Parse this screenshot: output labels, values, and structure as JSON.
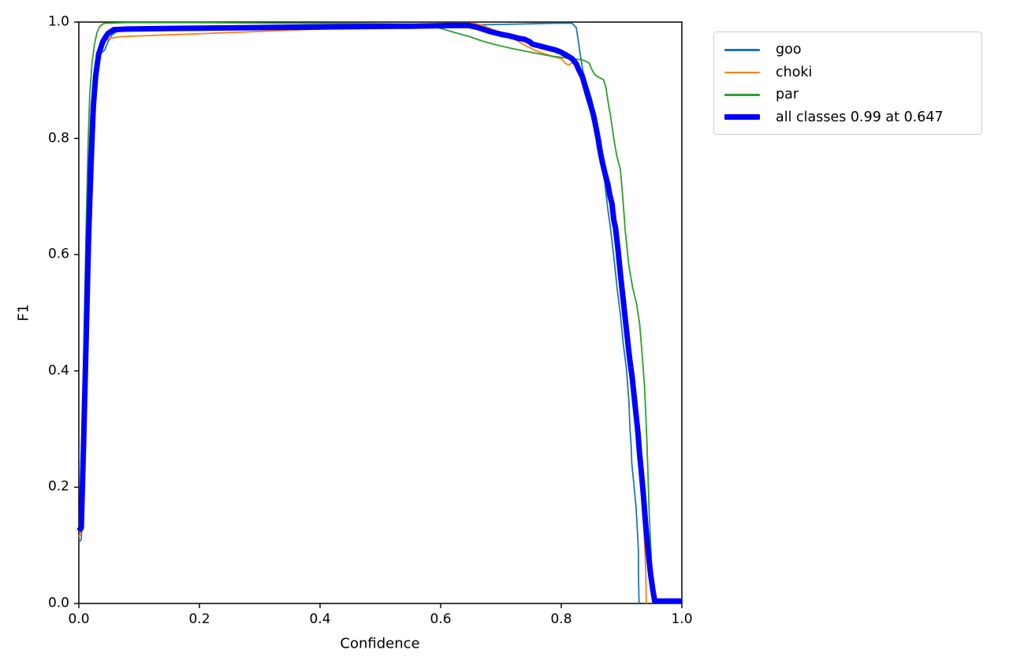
{
  "figure": {
    "background": "#ffffff",
    "plot_border_color": "#000000"
  },
  "chart_data": {
    "type": "line",
    "title": "",
    "xlabel": "Confidence",
    "ylabel": "F1",
    "xlim": [
      0.0,
      1.0
    ],
    "ylim": [
      0.0,
      1.0
    ],
    "x_ticks": [
      0.0,
      0.2,
      0.4,
      0.6,
      0.8,
      1.0
    ],
    "y_ticks": [
      0.0,
      0.2,
      0.4,
      0.6,
      0.8,
      1.0
    ],
    "x_tick_labels": [
      "0.0",
      "0.2",
      "0.4",
      "0.6",
      "0.8",
      "1.0"
    ],
    "y_tick_labels": [
      "0.0",
      "0.2",
      "0.4",
      "0.6",
      "0.8",
      "1.0"
    ],
    "grid": false,
    "legend_position": "outside-top-right",
    "best_f1": "0.99",
    "best_confidence": "0.647",
    "series": [
      {
        "name": "goo",
        "legend_label": "goo",
        "color": "#1f77b4",
        "line_width": 1.8,
        "points": [
          [
            0.0,
            0.105
          ],
          [
            0.004,
            0.11
          ],
          [
            0.007,
            0.2
          ],
          [
            0.011,
            0.34
          ],
          [
            0.014,
            0.47
          ],
          [
            0.018,
            0.6
          ],
          [
            0.023,
            0.73
          ],
          [
            0.027,
            0.85
          ],
          [
            0.03,
            0.92
          ],
          [
            0.033,
            0.948
          ],
          [
            0.036,
            0.957
          ],
          [
            0.039,
            0.948
          ],
          [
            0.043,
            0.952
          ],
          [
            0.048,
            0.965
          ],
          [
            0.055,
            0.978
          ],
          [
            0.065,
            0.985
          ],
          [
            0.1,
            0.987
          ],
          [
            0.2,
            0.989
          ],
          [
            0.3,
            0.99
          ],
          [
            0.4,
            0.991
          ],
          [
            0.5,
            0.992
          ],
          [
            0.6,
            0.994
          ],
          [
            0.65,
            0.995
          ],
          [
            0.7,
            0.996
          ],
          [
            0.75,
            0.997
          ],
          [
            0.79,
            0.998
          ],
          [
            0.818,
            0.998
          ],
          [
            0.825,
            0.99
          ],
          [
            0.828,
            0.97
          ],
          [
            0.831,
            0.948
          ],
          [
            0.836,
            0.915
          ],
          [
            0.842,
            0.895
          ],
          [
            0.85,
            0.868
          ],
          [
            0.856,
            0.84
          ],
          [
            0.86,
            0.805
          ],
          [
            0.864,
            0.778
          ],
          [
            0.868,
            0.748
          ],
          [
            0.872,
            0.726
          ],
          [
            0.877,
            0.68
          ],
          [
            0.881,
            0.65
          ],
          [
            0.884,
            0.625
          ],
          [
            0.888,
            0.588
          ],
          [
            0.893,
            0.54
          ],
          [
            0.898,
            0.497
          ],
          [
            0.903,
            0.445
          ],
          [
            0.908,
            0.405
          ],
          [
            0.912,
            0.35
          ],
          [
            0.914,
            0.3
          ],
          [
            0.916,
            0.27
          ],
          [
            0.917,
            0.24
          ],
          [
            0.92,
            0.21
          ],
          [
            0.924,
            0.165
          ],
          [
            0.926,
            0.13
          ],
          [
            0.928,
            0.09
          ],
          [
            0.928,
            0.05
          ],
          [
            0.929,
            0.0
          ]
        ]
      },
      {
        "name": "choki",
        "legend_label": "choki",
        "color": "#ff7f0e",
        "line_width": 1.8,
        "points": [
          [
            0.0,
            0.115
          ],
          [
            0.003,
            0.12
          ],
          [
            0.007,
            0.25
          ],
          [
            0.01,
            0.4
          ],
          [
            0.014,
            0.58
          ],
          [
            0.018,
            0.72
          ],
          [
            0.022,
            0.83
          ],
          [
            0.026,
            0.9
          ],
          [
            0.03,
            0.938
          ],
          [
            0.036,
            0.955
          ],
          [
            0.042,
            0.965
          ],
          [
            0.05,
            0.972
          ],
          [
            0.07,
            0.975
          ],
          [
            0.12,
            0.977
          ],
          [
            0.2,
            0.98
          ],
          [
            0.3,
            0.984
          ],
          [
            0.4,
            0.988
          ],
          [
            0.5,
            0.992
          ],
          [
            0.57,
            0.995
          ],
          [
            0.62,
            0.997
          ],
          [
            0.655,
            0.998
          ],
          [
            0.668,
            0.995
          ],
          [
            0.68,
            0.99
          ],
          [
            0.695,
            0.984
          ],
          [
            0.71,
            0.977
          ],
          [
            0.725,
            0.969
          ],
          [
            0.74,
            0.96
          ],
          [
            0.755,
            0.952
          ],
          [
            0.77,
            0.946
          ],
          [
            0.785,
            0.941
          ],
          [
            0.8,
            0.937
          ],
          [
            0.806,
            0.93
          ],
          [
            0.812,
            0.926
          ],
          [
            0.818,
            0.93
          ],
          [
            0.824,
            0.928
          ],
          [
            0.828,
            0.92
          ],
          [
            0.832,
            0.905
          ],
          [
            0.836,
            0.892
          ],
          [
            0.84,
            0.88
          ],
          [
            0.846,
            0.862
          ],
          [
            0.852,
            0.838
          ],
          [
            0.857,
            0.82
          ],
          [
            0.862,
            0.792
          ],
          [
            0.866,
            0.77
          ],
          [
            0.87,
            0.75
          ],
          [
            0.874,
            0.73
          ],
          [
            0.878,
            0.712
          ],
          [
            0.882,
            0.69
          ],
          [
            0.886,
            0.662
          ],
          [
            0.89,
            0.63
          ],
          [
            0.895,
            0.585
          ],
          [
            0.9,
            0.54
          ],
          [
            0.906,
            0.485
          ],
          [
            0.912,
            0.43
          ],
          [
            0.918,
            0.375
          ],
          [
            0.924,
            0.31
          ],
          [
            0.929,
            0.25
          ],
          [
            0.933,
            0.195
          ],
          [
            0.937,
            0.13
          ],
          [
            0.94,
            0.06
          ],
          [
            0.941,
            0.0
          ]
        ]
      },
      {
        "name": "par",
        "legend_label": "par",
        "color": "#2ca02c",
        "line_width": 1.8,
        "points": [
          [
            0.0,
            0.135
          ],
          [
            0.003,
            0.14
          ],
          [
            0.006,
            0.3
          ],
          [
            0.009,
            0.48
          ],
          [
            0.012,
            0.64
          ],
          [
            0.015,
            0.78
          ],
          [
            0.018,
            0.875
          ],
          [
            0.022,
            0.93
          ],
          [
            0.026,
            0.962
          ],
          [
            0.03,
            0.982
          ],
          [
            0.035,
            0.993
          ],
          [
            0.042,
            0.998
          ],
          [
            0.08,
            0.999
          ],
          [
            0.2,
            0.999
          ],
          [
            0.35,
            0.998
          ],
          [
            0.5,
            0.997
          ],
          [
            0.575,
            0.996
          ],
          [
            0.59,
            0.992
          ],
          [
            0.61,
            0.986
          ],
          [
            0.63,
            0.98
          ],
          [
            0.648,
            0.975
          ],
          [
            0.67,
            0.967
          ],
          [
            0.695,
            0.96
          ],
          [
            0.72,
            0.954
          ],
          [
            0.75,
            0.948
          ],
          [
            0.78,
            0.942
          ],
          [
            0.81,
            0.938
          ],
          [
            0.835,
            0.935
          ],
          [
            0.846,
            0.93
          ],
          [
            0.85,
            0.92
          ],
          [
            0.855,
            0.91
          ],
          [
            0.862,
            0.905
          ],
          [
            0.87,
            0.901
          ],
          [
            0.874,
            0.888
          ],
          [
            0.878,
            0.86
          ],
          [
            0.882,
            0.837
          ],
          [
            0.887,
            0.8
          ],
          [
            0.892,
            0.77
          ],
          [
            0.898,
            0.746
          ],
          [
            0.902,
            0.7
          ],
          [
            0.906,
            0.642
          ],
          [
            0.912,
            0.582
          ],
          [
            0.918,
            0.545
          ],
          [
            0.925,
            0.515
          ],
          [
            0.93,
            0.48
          ],
          [
            0.934,
            0.43
          ],
          [
            0.938,
            0.375
          ],
          [
            0.94,
            0.33
          ],
          [
            0.942,
            0.28
          ],
          [
            0.944,
            0.215
          ],
          [
            0.946,
            0.15
          ],
          [
            0.949,
            0.085
          ],
          [
            0.951,
            0.03
          ],
          [
            0.952,
            0.0
          ]
        ]
      },
      {
        "name": "all classes",
        "legend_label": "all classes 0.99 at 0.647",
        "color": "#0000ff",
        "line_width": 7,
        "points": [
          [
            0.0,
            0.125
          ],
          [
            0.004,
            0.13
          ],
          [
            0.008,
            0.28
          ],
          [
            0.012,
            0.45
          ],
          [
            0.016,
            0.62
          ],
          [
            0.02,
            0.76
          ],
          [
            0.024,
            0.855
          ],
          [
            0.028,
            0.908
          ],
          [
            0.033,
            0.945
          ],
          [
            0.04,
            0.967
          ],
          [
            0.048,
            0.98
          ],
          [
            0.058,
            0.987
          ],
          [
            0.08,
            0.988
          ],
          [
            0.15,
            0.989
          ],
          [
            0.25,
            0.99
          ],
          [
            0.35,
            0.991
          ],
          [
            0.45,
            0.992
          ],
          [
            0.55,
            0.993
          ],
          [
            0.62,
            0.994
          ],
          [
            0.647,
            0.994
          ],
          [
            0.66,
            0.991
          ],
          [
            0.672,
            0.987
          ],
          [
            0.684,
            0.983
          ],
          [
            0.7,
            0.979
          ],
          [
            0.715,
            0.976
          ],
          [
            0.73,
            0.972
          ],
          [
            0.74,
            0.97
          ],
          [
            0.748,
            0.966
          ],
          [
            0.752,
            0.962
          ],
          [
            0.76,
            0.96
          ],
          [
            0.775,
            0.956
          ],
          [
            0.79,
            0.952
          ],
          [
            0.8,
            0.948
          ],
          [
            0.81,
            0.942
          ],
          [
            0.818,
            0.937
          ],
          [
            0.825,
            0.928
          ],
          [
            0.83,
            0.916
          ],
          [
            0.835,
            0.906
          ],
          [
            0.84,
            0.888
          ],
          [
            0.845,
            0.87
          ],
          [
            0.849,
            0.856
          ],
          [
            0.853,
            0.842
          ],
          [
            0.857,
            0.822
          ],
          [
            0.861,
            0.8
          ],
          [
            0.865,
            0.775
          ],
          [
            0.869,
            0.755
          ],
          [
            0.873,
            0.738
          ],
          [
            0.877,
            0.722
          ],
          [
            0.881,
            0.7
          ],
          [
            0.884,
            0.688
          ],
          [
            0.887,
            0.66
          ],
          [
            0.89,
            0.645
          ],
          [
            0.894,
            0.61
          ],
          [
            0.898,
            0.567
          ],
          [
            0.903,
            0.52
          ],
          [
            0.908,
            0.472
          ],
          [
            0.913,
            0.425
          ],
          [
            0.918,
            0.385
          ],
          [
            0.923,
            0.335
          ],
          [
            0.927,
            0.295
          ],
          [
            0.93,
            0.255
          ],
          [
            0.932,
            0.235
          ],
          [
            0.936,
            0.19
          ],
          [
            0.94,
            0.135
          ],
          [
            0.944,
            0.09
          ],
          [
            0.948,
            0.052
          ],
          [
            0.952,
            0.022
          ],
          [
            0.955,
            0.004
          ],
          [
            1.0,
            0.004
          ]
        ]
      }
    ]
  }
}
